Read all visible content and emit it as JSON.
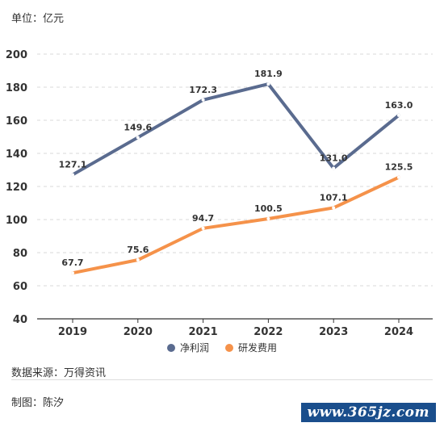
{
  "unit_label": "单位：亿元",
  "source_label": "数据来源：万得资讯",
  "author_label": "制图：陈汐",
  "watermark": "www.365jz.com",
  "chart_data": {
    "type": "line",
    "categories": [
      "2019",
      "2020",
      "2021",
      "2022",
      "2023",
      "2024"
    ],
    "ylim": [
      40,
      200
    ],
    "yticks": [
      40,
      60,
      80,
      100,
      120,
      140,
      160,
      180,
      200
    ],
    "grid": true,
    "legend_position": "bottom-center",
    "series": [
      {
        "name": "净利润",
        "color": "#5a6b8f",
        "values": [
          127.1,
          149.6,
          172.3,
          181.9,
          131.0,
          163.0
        ],
        "labels": [
          "127.1",
          "149.6",
          "172.3",
          "181.9",
          "131.0",
          "163.0"
        ]
      },
      {
        "name": "研发费用",
        "color": "#f5924a",
        "values": [
          67.7,
          75.6,
          94.7,
          100.5,
          107.1,
          125.5
        ],
        "labels": [
          "67.7",
          "75.6",
          "94.7",
          "100.5",
          "107.1",
          "125.5"
        ]
      }
    ]
  }
}
